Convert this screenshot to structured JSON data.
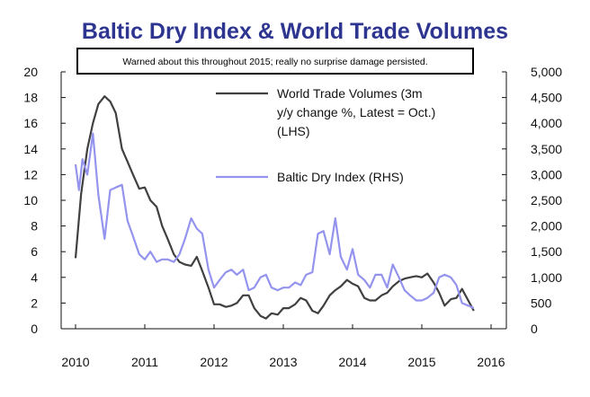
{
  "chart_data": {
    "type": "line",
    "title": "Baltic Dry Index & World Trade Volumes",
    "annotation": "Warned about this throughout 2015; really no surprise damage persisted.",
    "x_ticks": [
      "2010",
      "2011",
      "2012",
      "2013",
      "2014",
      "2015",
      "2016"
    ],
    "left_axis": {
      "ylim": [
        0,
        20
      ],
      "ticks": [
        "0",
        "2",
        "4",
        "6",
        "8",
        "10",
        "12",
        "14",
        "16",
        "18",
        "20"
      ]
    },
    "right_axis": {
      "ylim": [
        0,
        5000
      ],
      "ticks": [
        "0",
        "500",
        "1,000",
        "1,500",
        "2,000",
        "2,500",
        "3,000",
        "3,500",
        "4,000",
        "4,500",
        "5,000"
      ]
    },
    "grid": false,
    "legend_position": "top-right",
    "series": [
      {
        "name": "World Trade Volumes (3m y/y change %, Latest = Oct.) (LHS)",
        "legend_lines": [
          "World Trade Volumes (3m",
          "y/y change %, Latest = Oct.)",
          "(LHS)"
        ],
        "axis": "left",
        "color": "#404040",
        "points": [
          [
            2010.0,
            5.5
          ],
          [
            2010.08,
            10.5
          ],
          [
            2010.17,
            14.0
          ],
          [
            2010.25,
            16.0
          ],
          [
            2010.33,
            17.5
          ],
          [
            2010.42,
            18.1
          ],
          [
            2010.5,
            17.7
          ],
          [
            2010.58,
            16.8
          ],
          [
            2010.67,
            14.0
          ],
          [
            2010.75,
            13.0
          ],
          [
            2010.83,
            12.0
          ],
          [
            2010.92,
            10.9
          ],
          [
            2011.0,
            11.0
          ],
          [
            2011.08,
            10.0
          ],
          [
            2011.17,
            9.5
          ],
          [
            2011.25,
            8.0
          ],
          [
            2011.33,
            7.0
          ],
          [
            2011.42,
            5.8
          ],
          [
            2011.5,
            5.2
          ],
          [
            2011.58,
            5.0
          ],
          [
            2011.67,
            4.9
          ],
          [
            2011.75,
            5.6
          ],
          [
            2011.83,
            4.5
          ],
          [
            2011.92,
            3.2
          ],
          [
            2012.0,
            1.9
          ],
          [
            2012.08,
            1.9
          ],
          [
            2012.17,
            1.7
          ],
          [
            2012.25,
            1.8
          ],
          [
            2012.33,
            2.0
          ],
          [
            2012.42,
            2.6
          ],
          [
            2012.5,
            2.6
          ],
          [
            2012.58,
            1.6
          ],
          [
            2012.67,
            1.0
          ],
          [
            2012.75,
            0.8
          ],
          [
            2012.83,
            1.2
          ],
          [
            2012.92,
            1.1
          ],
          [
            2013.0,
            1.6
          ],
          [
            2013.08,
            1.6
          ],
          [
            2013.17,
            1.9
          ],
          [
            2013.25,
            2.4
          ],
          [
            2013.33,
            2.2
          ],
          [
            2013.42,
            1.4
          ],
          [
            2013.5,
            1.2
          ],
          [
            2013.58,
            1.8
          ],
          [
            2013.67,
            2.6
          ],
          [
            2013.75,
            3.0
          ],
          [
            2013.83,
            3.3
          ],
          [
            2013.92,
            3.8
          ],
          [
            2014.0,
            3.5
          ],
          [
            2014.08,
            3.3
          ],
          [
            2014.17,
            2.4
          ],
          [
            2014.25,
            2.2
          ],
          [
            2014.33,
            2.2
          ],
          [
            2014.42,
            2.6
          ],
          [
            2014.5,
            2.8
          ],
          [
            2014.58,
            3.3
          ],
          [
            2014.67,
            3.7
          ],
          [
            2014.75,
            3.9
          ],
          [
            2014.83,
            4.0
          ],
          [
            2014.92,
            4.1
          ],
          [
            2015.0,
            4.0
          ],
          [
            2015.08,
            4.3
          ],
          [
            2015.17,
            3.6
          ],
          [
            2015.25,
            2.8
          ],
          [
            2015.33,
            1.8
          ],
          [
            2015.42,
            2.3
          ],
          [
            2015.5,
            2.4
          ],
          [
            2015.58,
            3.1
          ],
          [
            2015.67,
            2.2
          ],
          [
            2015.75,
            1.4
          ]
        ]
      },
      {
        "name": "Baltic Dry Index (RHS)",
        "legend_lines": [
          "Baltic Dry Index (RHS)"
        ],
        "axis": "right",
        "color": "#9494ee",
        "points": [
          [
            2010.0,
            3200
          ],
          [
            2010.05,
            2700
          ],
          [
            2010.1,
            3300
          ],
          [
            2010.17,
            3000
          ],
          [
            2010.25,
            3800
          ],
          [
            2010.33,
            2600
          ],
          [
            2010.42,
            1750
          ],
          [
            2010.5,
            2700
          ],
          [
            2010.58,
            2750
          ],
          [
            2010.67,
            2800
          ],
          [
            2010.75,
            2100
          ],
          [
            2010.83,
            1800
          ],
          [
            2010.92,
            1450
          ],
          [
            2011.0,
            1350
          ],
          [
            2011.08,
            1500
          ],
          [
            2011.17,
            1300
          ],
          [
            2011.25,
            1350
          ],
          [
            2011.33,
            1350
          ],
          [
            2011.42,
            1300
          ],
          [
            2011.5,
            1450
          ],
          [
            2011.58,
            1750
          ],
          [
            2011.67,
            2150
          ],
          [
            2011.75,
            1950
          ],
          [
            2011.83,
            1850
          ],
          [
            2011.92,
            1150
          ],
          [
            2012.0,
            800
          ],
          [
            2012.08,
            950
          ],
          [
            2012.17,
            1100
          ],
          [
            2012.25,
            1150
          ],
          [
            2012.33,
            1050
          ],
          [
            2012.42,
            1150
          ],
          [
            2012.5,
            750
          ],
          [
            2012.58,
            800
          ],
          [
            2012.67,
            1000
          ],
          [
            2012.75,
            1050
          ],
          [
            2012.83,
            800
          ],
          [
            2012.92,
            750
          ],
          [
            2013.0,
            800
          ],
          [
            2013.08,
            800
          ],
          [
            2013.17,
            900
          ],
          [
            2013.25,
            850
          ],
          [
            2013.33,
            1050
          ],
          [
            2013.42,
            1100
          ],
          [
            2013.5,
            1850
          ],
          [
            2013.58,
            1900
          ],
          [
            2013.67,
            1450
          ],
          [
            2013.75,
            2150
          ],
          [
            2013.83,
            1400
          ],
          [
            2013.92,
            1150
          ],
          [
            2014.0,
            1550
          ],
          [
            2014.08,
            1050
          ],
          [
            2014.17,
            950
          ],
          [
            2014.25,
            800
          ],
          [
            2014.33,
            1050
          ],
          [
            2014.42,
            1050
          ],
          [
            2014.5,
            800
          ],
          [
            2014.58,
            1250
          ],
          [
            2014.67,
            1000
          ],
          [
            2014.75,
            750
          ],
          [
            2014.83,
            650
          ],
          [
            2014.92,
            550
          ],
          [
            2015.0,
            550
          ],
          [
            2015.08,
            600
          ],
          [
            2015.17,
            700
          ],
          [
            2015.25,
            1000
          ],
          [
            2015.33,
            1050
          ],
          [
            2015.42,
            1000
          ],
          [
            2015.5,
            850
          ],
          [
            2015.58,
            500
          ],
          [
            2015.67,
            450
          ],
          [
            2015.75,
            400
          ]
        ]
      }
    ]
  }
}
